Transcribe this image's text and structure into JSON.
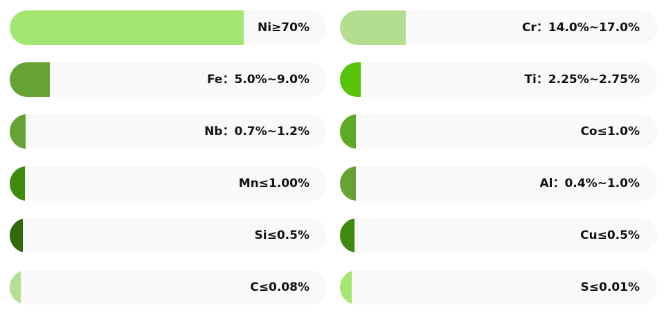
{
  "left_items": [
    {
      "label": "Ni≥70%",
      "fraction": 0.738,
      "color": "#a3e671"
    },
    {
      "label": "Fe：5.0%~9.0%",
      "fraction": 0.127,
      "color": "#66a334"
    },
    {
      "label": "Nb：0.7%~1.2%",
      "fraction": 0.05,
      "color": "#66a334"
    },
    {
      "label": "Mn≤1.00%",
      "fraction": 0.048,
      "color": "#3f8a0d"
    },
    {
      "label": "Si≤0.5%",
      "fraction": 0.042,
      "color": "#2e6a0b"
    },
    {
      "label": "C≤0.08%",
      "fraction": 0.036,
      "color": "#b3de94"
    }
  ],
  "right_items": [
    {
      "label": "Cr：14.0%~17.0%",
      "fraction": 0.208,
      "color": "#b3de8f"
    },
    {
      "label": "Ti：2.25%~2.75%",
      "fraction": 0.066,
      "color": "#56c40b"
    },
    {
      "label": "Co≤1.0%",
      "fraction": 0.05,
      "color": "#5faa24"
    },
    {
      "label": "Al：0.4%~1.0%",
      "fraction": 0.05,
      "color": "#66a334"
    },
    {
      "label": "Cu≤0.5%",
      "fraction": 0.046,
      "color": "#3f8a0d"
    },
    {
      "label": "S≤0.01%",
      "fraction": 0.038,
      "color": "#a3e671"
    }
  ]
}
